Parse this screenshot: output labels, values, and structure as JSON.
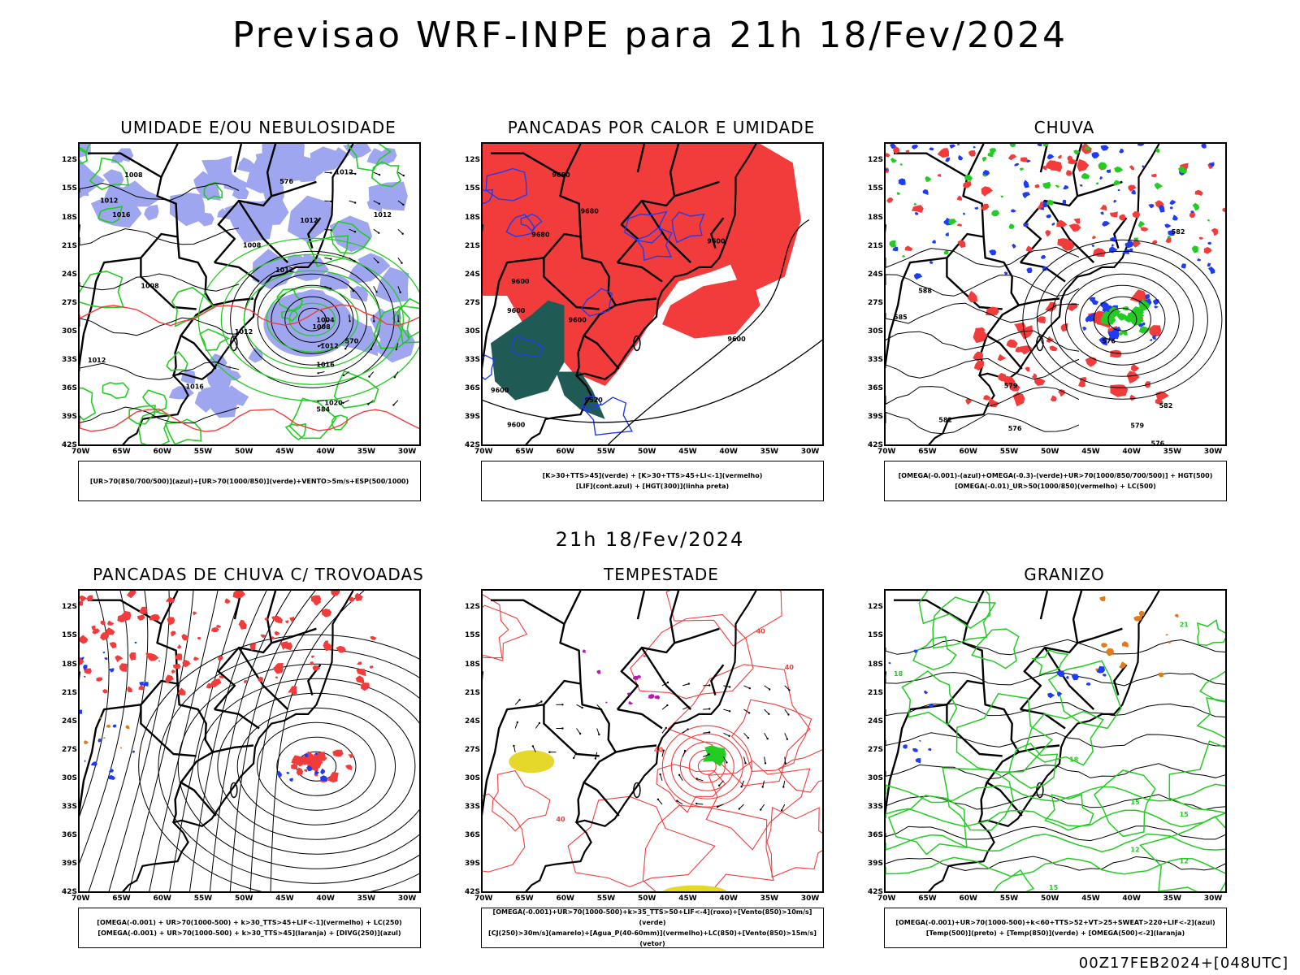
{
  "header": {
    "title": "Previsao WRF-INPE  para 21h 18/Fev/2024",
    "mid_title": "21h 18/Fev/2024",
    "footer": "00Z17FEB2024+[048UTC]"
  },
  "colors": {
    "humid_blue": "#9fa6f0",
    "green": "#22cc22",
    "red": "#f23c3c",
    "dark_teal": "#1f5a55",
    "blue": "#1e3cf0",
    "yellow": "#e6d82a",
    "orange": "#e07a1a",
    "purple": "#b020b0"
  },
  "chart_data": [
    {
      "type": "map",
      "title": "UMIDADE E/OU NEBULOSIDADE",
      "legend": [
        "[UR>70(850/700/500)](azul)+[UR>70(1000/850)](verde)+VENTO>5m/s+ESP(500/1000)"
      ],
      "yticks": [
        "12S",
        "15S",
        "18S",
        "21S",
        "24S",
        "27S",
        "30S",
        "33S",
        "36S",
        "39S",
        "42S"
      ],
      "xticks": [
        "70W",
        "65W",
        "60W",
        "55W",
        "50W",
        "45W",
        "40W",
        "35W",
        "30W"
      ],
      "contour_labels": [
        {
          "t": "1008",
          "lon": -64.5,
          "lat": -13.5
        },
        {
          "t": "1012",
          "lon": -67.5,
          "lat": -16.2
        },
        {
          "t": "1016",
          "lon": -66,
          "lat": -17.7
        },
        {
          "t": "1012",
          "lon": -38.7,
          "lat": -13.2
        },
        {
          "t": "1012",
          "lon": -43,
          "lat": -18.3
        },
        {
          "t": "1012",
          "lon": -34,
          "lat": -17.7
        },
        {
          "t": "1008",
          "lon": -50,
          "lat": -20.9
        },
        {
          "t": "1012",
          "lon": -46,
          "lat": -23.5
        },
        {
          "t": "1008",
          "lon": -62.5,
          "lat": -25.2
        },
        {
          "t": "1004",
          "lon": -41,
          "lat": -28.8
        },
        {
          "t": "1008",
          "lon": -41.5,
          "lat": -29.5
        },
        {
          "t": "1012",
          "lon": -40.5,
          "lat": -31.5
        },
        {
          "t": "1016",
          "lon": -41,
          "lat": -33.5
        },
        {
          "t": "1016",
          "lon": -57,
          "lat": -35.8
        },
        {
          "t": "1020",
          "lon": -40,
          "lat": -37.5
        },
        {
          "t": "1012",
          "lon": -51,
          "lat": -30
        },
        {
          "t": "1012",
          "lon": -69,
          "lat": -33
        },
        {
          "t": "576",
          "lon": -45.5,
          "lat": -14.2
        },
        {
          "t": "570",
          "lon": -37.5,
          "lat": -31
        },
        {
          "t": "584",
          "lon": -41,
          "lat": -38.2
        }
      ]
    },
    {
      "type": "map",
      "title": "PANCADAS POR CALOR E UMIDADE",
      "legend": [
        "[K>30+TTS>45](verde) + [K>30+TTS>45+LI<-1](vermelho)",
        "[LIF](cont.azul) + [HGT(300)](linha preta)"
      ],
      "yticks": [
        "12S",
        "15S",
        "18S",
        "21S",
        "24S",
        "27S",
        "30S",
        "33S",
        "36S",
        "39S",
        "42S"
      ],
      "xticks": [
        "70W",
        "65W",
        "60W",
        "55W",
        "50W",
        "45W",
        "40W",
        "35W",
        "30W"
      ],
      "contour_labels": [
        {
          "t": "9680",
          "lon": -61.5,
          "lat": -13.5
        },
        {
          "t": "9680",
          "lon": -58,
          "lat": -17.3
        },
        {
          "t": "9680",
          "lon": -64,
          "lat": -19.8
        },
        {
          "t": "9600",
          "lon": -42.5,
          "lat": -20.5
        },
        {
          "t": "9600",
          "lon": -66.5,
          "lat": -24.7
        },
        {
          "t": "9600",
          "lon": -67,
          "lat": -27.8
        },
        {
          "t": "9600",
          "lon": -59.5,
          "lat": -28.8
        },
        {
          "t": "9600",
          "lon": -40,
          "lat": -30.8
        },
        {
          "t": "9600",
          "lon": -69,
          "lat": -36.2
        },
        {
          "t": "9520",
          "lon": -57.5,
          "lat": -37.2
        },
        {
          "t": "9600",
          "lon": -67,
          "lat": -39.8
        }
      ]
    },
    {
      "type": "map",
      "title": "CHUVA",
      "legend": [
        "[OMEGA(-0.001)-(azul)+OMEGA(-0.3)-(verde)+UR>70(1000/850/700/500)] + HGT(500)",
        "[OMEGA(-0.01)_UR>50(1000/850)(vermelho) + LC(500)"
      ],
      "yticks": [
        "12S",
        "15S",
        "18S",
        "21S",
        "24S",
        "27S",
        "30S",
        "33S",
        "36S",
        "39S",
        "42S"
      ],
      "xticks": [
        "70W",
        "65W",
        "60W",
        "55W",
        "50W",
        "45W",
        "40W",
        "35W",
        "30W"
      ],
      "contour_labels": [
        {
          "t": "588",
          "lon": -66,
          "lat": -25.7
        },
        {
          "t": "585",
          "lon": -69,
          "lat": -28.5
        },
        {
          "t": "576",
          "lon": -43.5,
          "lat": -31
        },
        {
          "t": "579",
          "lon": -55.5,
          "lat": -35.7
        },
        {
          "t": "582",
          "lon": -63.5,
          "lat": -39.3
        },
        {
          "t": "576",
          "lon": -55,
          "lat": -40.2
        },
        {
          "t": "579",
          "lon": -40,
          "lat": -39.9
        },
        {
          "t": "582",
          "lon": -36.5,
          "lat": -37.8
        },
        {
          "t": "576",
          "lon": -37.5,
          "lat": -41.8
        },
        {
          "t": "582",
          "lon": -35,
          "lat": -19.5
        }
      ]
    },
    {
      "type": "map",
      "title": "PANCADAS DE CHUVA C/ TROVOADAS",
      "legend": [
        "[OMEGA(-0.001) + UR>70(1000-500) + k>30_TTS>45+LIF<-1](vermelho) + LC(250)",
        "[OMEGA(-0.001) + UR>70(1000-500) + k>30_TTS>45](laranja) + [DIVG(250)](azul)"
      ],
      "yticks": [
        "12S",
        "15S",
        "18S",
        "21S",
        "24S",
        "27S",
        "30S",
        "33S",
        "36S",
        "39S",
        "42S"
      ],
      "xticks": [
        "70W",
        "65W",
        "60W",
        "55W",
        "50W",
        "45W",
        "40W",
        "35W",
        "30W"
      ],
      "contour_labels": []
    },
    {
      "type": "map",
      "title": "TEMPESTADE",
      "legend": [
        "[OMEGA(-0.001)+UR>70(1000-500)+k>35_TTS>50+LIF<-4](roxo)+[Vento(850)>10m/s](verde)",
        "[CJ(250)>30m/s](amarelo)+[Agua_P(40-60mm)](vermelho)+LC(850)+[Vento(850)>15m/s](vetor)"
      ],
      "yticks": [
        "12S",
        "15S",
        "18S",
        "21S",
        "24S",
        "27S",
        "30S",
        "33S",
        "36S",
        "39S",
        "42S"
      ],
      "xticks": [
        "70W",
        "65W",
        "60W",
        "55W",
        "50W",
        "45W",
        "40W",
        "35W",
        "30W"
      ],
      "contour_labels": [
        {
          "t": "40",
          "lon": -36.5,
          "lat": -14.5
        },
        {
          "t": "40",
          "lon": -33,
          "lat": -18.3
        },
        {
          "t": "40",
          "lon": -49,
          "lat": -27
        },
        {
          "t": "40",
          "lon": -61,
          "lat": -34.3
        }
      ]
    },
    {
      "type": "map",
      "title": "GRANIZO",
      "legend": [
        "[OMEGA(-0.001)+UR>70(1000-500)+k<60+TTS>52+VT>25+SWEAT>220+LIF<-2](azul)",
        "[Temp(500)](preto) + [Temp(850)](verde) + [OMEGA(500)<-2](laranja)"
      ],
      "yticks": [
        "12S",
        "15S",
        "18S",
        "21S",
        "24S",
        "27S",
        "30S",
        "33S",
        "36S",
        "39S",
        "42S"
      ],
      "xticks": [
        "70W",
        "65W",
        "60W",
        "55W",
        "50W",
        "45W",
        "40W",
        "35W",
        "30W"
      ],
      "contour_labels": [
        {
          "t": "21",
          "lon": -34,
          "lat": -13.8
        },
        {
          "t": "18",
          "lon": -47.5,
          "lat": -28
        },
        {
          "t": "15",
          "lon": -40,
          "lat": -32.5
        },
        {
          "t": "15",
          "lon": -34,
          "lat": -33.8
        },
        {
          "t": "12",
          "lon": -40,
          "lat": -37.5
        },
        {
          "t": "12",
          "lon": -34,
          "lat": -38.7
        },
        {
          "t": "15",
          "lon": -50,
          "lat": -41.5
        },
        {
          "t": "18",
          "lon": -69,
          "lat": -19
        }
      ]
    }
  ]
}
